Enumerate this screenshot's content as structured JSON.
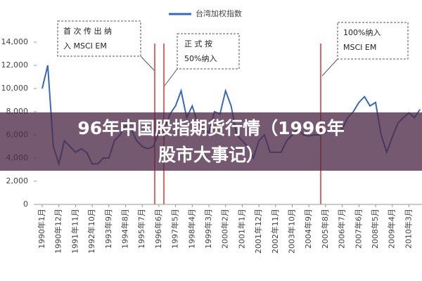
{
  "chart_data": {
    "type": "line",
    "title": [
      "96年中国股指期货行情（1996年",
      "股市大事记）"
    ],
    "categories": [
      "1990年1月",
      null,
      null,
      "1990年12月",
      null,
      null,
      "1991年11月",
      null,
      null,
      "1992年10月",
      null,
      null,
      "1993年9月",
      null,
      null,
      "1994年8月",
      null,
      null,
      "1995年7月",
      null,
      null,
      "1996年6月",
      null,
      null,
      "1997年5月",
      null,
      null,
      "1998年4月",
      null,
      null,
      "1999年3月",
      null,
      null,
      "2000年2月",
      null,
      null,
      "2001年1月",
      null,
      null,
      "2001年12月",
      null,
      null,
      "2002年11月",
      null,
      null,
      "2003年10月",
      null,
      null,
      "2004年9月",
      null,
      null,
      "2005年8月",
      null,
      null,
      "2006年7月",
      null,
      null,
      "2007年6月",
      null,
      null,
      "2008年5月",
      null,
      null,
      "2009年4月",
      null,
      null,
      "2010年3月",
      null,
      null
    ],
    "series": [
      {
        "name": "台湾加权指数",
        "color": "#3a68b5",
        "values": [
          10000,
          12000,
          5000,
          3500,
          5500,
          5000,
          4500,
          4800,
          4500,
          3500,
          3500,
          4000,
          4000,
          5500,
          6000,
          6800,
          6500,
          5500,
          5000,
          4800,
          5000,
          6200,
          6500,
          7800,
          8500,
          9800,
          7500,
          8500,
          7000,
          6500,
          6200,
          8000,
          7800,
          9800,
          8500,
          6000,
          5500,
          5000,
          4000,
          5500,
          6000,
          4500,
          4500,
          4500,
          5500,
          6000,
          6500,
          6000,
          5900,
          6000,
          6000,
          6200,
          6500,
          7000,
          6500,
          7500,
          8000,
          8800,
          9300,
          8500,
          8800,
          6000,
          4500,
          5800,
          7000,
          7500,
          7900,
          7500,
          8200
        ]
      }
    ],
    "ylim": [
      0,
      14000
    ],
    "yticks": [
      0,
      {
        "value": 2000,
        "label": "2,000"
      },
      {
        "value": 4000,
        "label": "4,000"
      },
      {
        "value": 6000,
        "label": "6,000"
      },
      {
        "value": 8000,
        "label": "8,000"
      },
      {
        "value": 10000,
        "label": "10,000"
      },
      {
        "value": 12000,
        "label": "12,000"
      },
      {
        "value": 14000,
        "label": "14,000"
      }
    ],
    "grid": false,
    "annotations": [
      [
        "首 次 传 出 纳",
        "入 MSCI EM"
      ],
      [
        "正 式 按",
        "50%纳入"
      ],
      [
        "100%纳入",
        "MSCI EM"
      ]
    ]
  }
}
